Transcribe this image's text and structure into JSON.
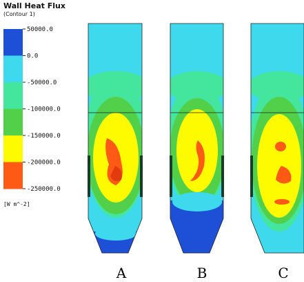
{
  "legend": {
    "title": "Wall Heat Flux",
    "subtitle": "(Contour 1)",
    "unit": "[W m^-2]",
    "ticks": [
      "50000.0",
      "0.0",
      "-50000.0",
      "-100000.0",
      "-150000.0",
      "-200000.0",
      "-250000.0"
    ],
    "colors": [
      "#1d50d6",
      "#3fd9ee",
      "#43e69c",
      "#53d04a",
      "#fefb00",
      "#fe5a16"
    ]
  },
  "panels": [
    {
      "label": "A"
    },
    {
      "label": "B"
    },
    {
      "label": "C"
    }
  ]
}
